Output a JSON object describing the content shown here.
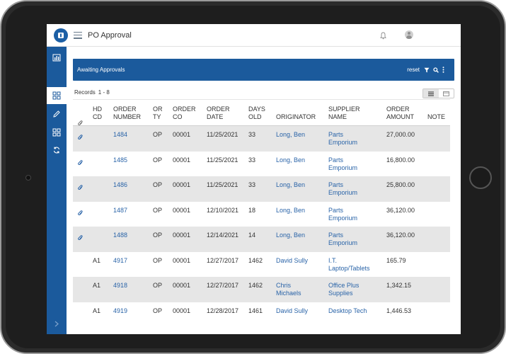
{
  "app": {
    "title": "PO Approval"
  },
  "sidebar": {
    "items": [
      {
        "name": "chart-icon"
      },
      {
        "name": "grid-icon"
      },
      {
        "name": "pencil-icon"
      },
      {
        "name": "grid-icon"
      },
      {
        "name": "refresh-icon"
      }
    ]
  },
  "panel": {
    "title": "Awaiting Approvals",
    "reset_label": "reset"
  },
  "records": {
    "label": "Records",
    "range": "1 - 8"
  },
  "table": {
    "headers": {
      "hd_cd": "HD\nCD",
      "order_number": "ORDER\nNUMBER",
      "or_ty": "OR\nTY",
      "order_co": "ORDER\nCO",
      "order_date": "ORDER\nDATE",
      "days_old": "DAYS\nOLD",
      "originator": "ORIGINATOR",
      "supplier_name": "SUPPLIER\nNAME",
      "order_amount": "ORDER\nAMOUNT",
      "note": "NOTE"
    },
    "rows": [
      {
        "attach": true,
        "hd_cd": "",
        "order_number": "1484",
        "or_ty": "OP",
        "order_co": "00001",
        "order_date": "11/25/2021",
        "days_old": "33",
        "originator": "Long, Ben",
        "supplier_name": "Parts\nEmporium",
        "order_amount": "27,000.00",
        "note": ""
      },
      {
        "attach": true,
        "hd_cd": "",
        "order_number": "1485",
        "or_ty": "OP",
        "order_co": "00001",
        "order_date": "11/25/2021",
        "days_old": "33",
        "originator": "Long, Ben",
        "supplier_name": "Parts\nEmporium",
        "order_amount": "16,800.00",
        "note": ""
      },
      {
        "attach": true,
        "hd_cd": "",
        "order_number": "1486",
        "or_ty": "OP",
        "order_co": "00001",
        "order_date": "11/25/2021",
        "days_old": "33",
        "originator": "Long, Ben",
        "supplier_name": "Parts\nEmporium",
        "order_amount": "25,800.00",
        "note": ""
      },
      {
        "attach": true,
        "hd_cd": "",
        "order_number": "1487",
        "or_ty": "OP",
        "order_co": "00001",
        "order_date": "12/10/2021",
        "days_old": "18",
        "originator": "Long, Ben",
        "supplier_name": "Parts\nEmporium",
        "order_amount": "36,120.00",
        "note": ""
      },
      {
        "attach": true,
        "hd_cd": "",
        "order_number": "1488",
        "or_ty": "OP",
        "order_co": "00001",
        "order_date": "12/14/2021",
        "days_old": "14",
        "originator": "Long, Ben",
        "supplier_name": "Parts\nEmporium",
        "order_amount": "36,120.00",
        "note": ""
      },
      {
        "attach": false,
        "hd_cd": "A1",
        "order_number": "4917",
        "or_ty": "OP",
        "order_co": "00001",
        "order_date": "12/27/2017",
        "days_old": "1462",
        "originator": "David Sully",
        "supplier_name": "I.T.\nLaptop/Tablets",
        "order_amount": "165.79",
        "note": ""
      },
      {
        "attach": false,
        "hd_cd": "A1",
        "order_number": "4918",
        "or_ty": "OP",
        "order_co": "00001",
        "order_date": "12/27/2017",
        "days_old": "1462",
        "originator": "Chris\nMichaels",
        "supplier_name": "Office Plus\nSupplies",
        "order_amount": "1,342.15",
        "note": ""
      },
      {
        "attach": false,
        "hd_cd": "A1",
        "order_number": "4919",
        "or_ty": "OP",
        "order_co": "00001",
        "order_date": "12/28/2017",
        "days_old": "1461",
        "originator": "David Sully",
        "supplier_name": "Desktop Tech",
        "order_amount": "1,446.53",
        "note": ""
      }
    ]
  },
  "colors": {
    "brand": "#1b5a9c",
    "link": "#2a64a8",
    "row_alt": "#e6e6e6"
  }
}
